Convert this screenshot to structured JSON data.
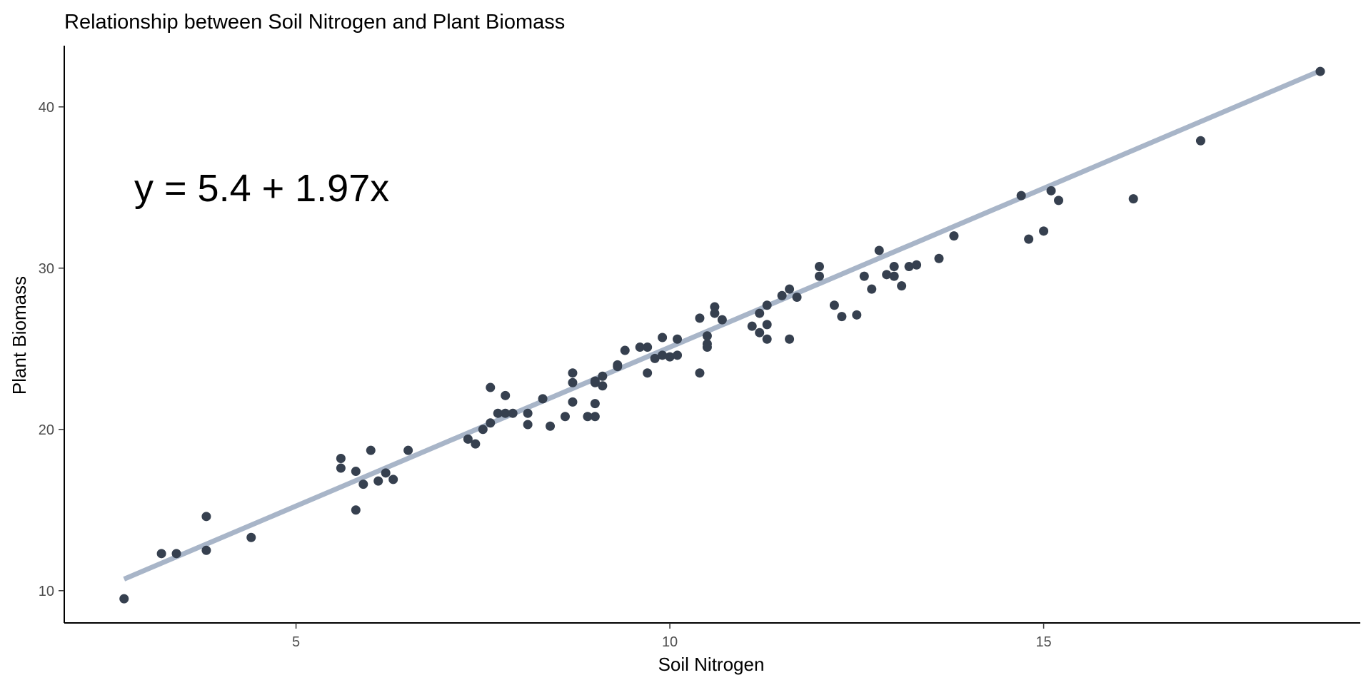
{
  "chart_data": {
    "type": "scatter",
    "title": "Relationship between Soil Nitrogen and Plant Biomass",
    "xlabel": "Soil Nitrogen",
    "ylabel": "Plant Biomass",
    "xlim": [
      1.9,
      19.4
    ],
    "ylim": [
      8.0,
      43.8
    ],
    "x_ticks": [
      5,
      10,
      15
    ],
    "y_ticks": [
      10,
      20,
      30,
      40
    ],
    "grid": false,
    "legend": "none",
    "point_color": "#36404f",
    "line_color": "#a8b5c8",
    "annotation": "y = 5.4 + 1.97x",
    "fit": {
      "intercept": 5.4,
      "slope": 1.97,
      "x_range": [
        2.7,
        18.7
      ]
    },
    "points": [
      [
        2.7,
        9.5
      ],
      [
        3.2,
        12.3
      ],
      [
        3.4,
        12.3
      ],
      [
        3.8,
        14.6
      ],
      [
        3.8,
        12.5
      ],
      [
        4.4,
        13.3
      ],
      [
        5.6,
        18.2
      ],
      [
        5.6,
        17.6
      ],
      [
        5.8,
        15.0
      ],
      [
        5.8,
        17.4
      ],
      [
        5.9,
        16.6
      ],
      [
        6.0,
        18.7
      ],
      [
        6.1,
        16.8
      ],
      [
        6.2,
        17.3
      ],
      [
        6.3,
        16.9
      ],
      [
        6.5,
        18.7
      ],
      [
        7.3,
        19.4
      ],
      [
        7.4,
        19.1
      ],
      [
        7.5,
        20.0
      ],
      [
        7.6,
        20.4
      ],
      [
        7.6,
        22.6
      ],
      [
        7.7,
        21.0
      ],
      [
        7.8,
        21.0
      ],
      [
        7.8,
        22.1
      ],
      [
        7.9,
        21.0
      ],
      [
        8.1,
        20.3
      ],
      [
        8.1,
        21.0
      ],
      [
        8.3,
        21.9
      ],
      [
        8.4,
        20.2
      ],
      [
        8.6,
        20.8
      ],
      [
        8.7,
        23.5
      ],
      [
        8.7,
        22.9
      ],
      [
        8.7,
        21.7
      ],
      [
        8.9,
        20.8
      ],
      [
        9.0,
        20.8
      ],
      [
        9.0,
        21.6
      ],
      [
        9.0,
        23.0
      ],
      [
        9.0,
        22.9
      ],
      [
        9.1,
        23.3
      ],
      [
        9.1,
        22.7
      ],
      [
        9.3,
        24.0
      ],
      [
        9.3,
        23.9
      ],
      [
        9.4,
        24.9
      ],
      [
        9.6,
        25.1
      ],
      [
        9.7,
        25.1
      ],
      [
        9.7,
        23.5
      ],
      [
        9.8,
        24.4
      ],
      [
        9.9,
        25.7
      ],
      [
        9.9,
        24.6
      ],
      [
        10.0,
        24.5
      ],
      [
        10.1,
        25.6
      ],
      [
        10.1,
        24.6
      ],
      [
        10.4,
        26.9
      ],
      [
        10.4,
        23.5
      ],
      [
        10.5,
        25.1
      ],
      [
        10.5,
        25.3
      ],
      [
        10.5,
        25.8
      ],
      [
        10.6,
        27.2
      ],
      [
        10.6,
        27.6
      ],
      [
        10.7,
        26.8
      ],
      [
        11.1,
        26.4
      ],
      [
        11.2,
        27.2
      ],
      [
        11.2,
        26.0
      ],
      [
        11.3,
        27.7
      ],
      [
        11.3,
        26.5
      ],
      [
        11.3,
        25.6
      ],
      [
        11.5,
        28.3
      ],
      [
        11.6,
        28.7
      ],
      [
        11.6,
        25.6
      ],
      [
        11.7,
        28.2
      ],
      [
        12.0,
        29.5
      ],
      [
        12.0,
        30.1
      ],
      [
        12.2,
        27.7
      ],
      [
        12.3,
        27.0
      ],
      [
        12.5,
        27.1
      ],
      [
        12.6,
        29.5
      ],
      [
        12.7,
        28.7
      ],
      [
        12.8,
        31.1
      ],
      [
        12.9,
        29.6
      ],
      [
        13.0,
        29.5
      ],
      [
        13.0,
        30.1
      ],
      [
        13.1,
        28.9
      ],
      [
        13.2,
        30.1
      ],
      [
        13.3,
        30.2
      ],
      [
        13.6,
        30.6
      ],
      [
        13.8,
        32.0
      ],
      [
        14.7,
        34.5
      ],
      [
        14.8,
        31.8
      ],
      [
        15.0,
        32.3
      ],
      [
        15.1,
        34.8
      ],
      [
        15.2,
        34.2
      ],
      [
        16.2,
        34.3
      ],
      [
        17.1,
        37.9
      ],
      [
        18.7,
        42.2
      ]
    ]
  }
}
